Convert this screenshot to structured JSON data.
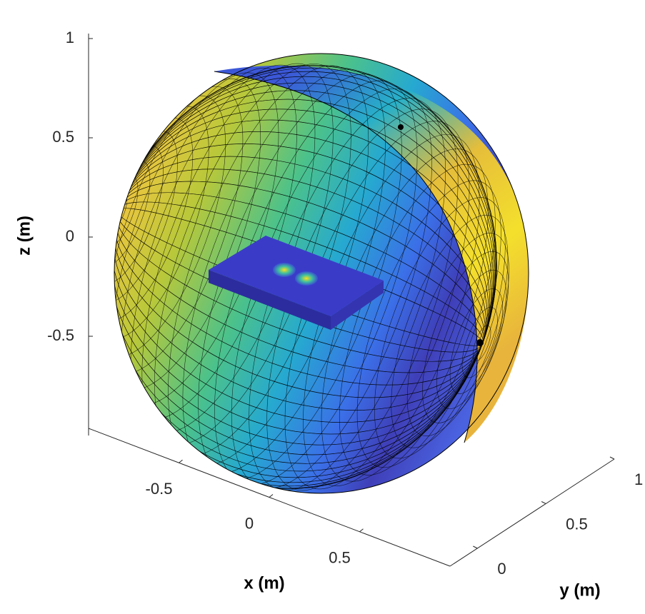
{
  "chart_data": {
    "type": "surface",
    "xlabel": "x (m)",
    "ylabel": "y (m)",
    "zlabel": "z (m)",
    "xlim": [
      -1,
      1
    ],
    "ylim": [
      -0.2,
      1
    ],
    "zlim": [
      -1,
      1
    ],
    "xticks": [
      -0.5,
      0,
      0.5
    ],
    "yticks": [
      0,
      0.5,
      1
    ],
    "zticks": [
      -0.5,
      0,
      0.5,
      1
    ]
  }
}
